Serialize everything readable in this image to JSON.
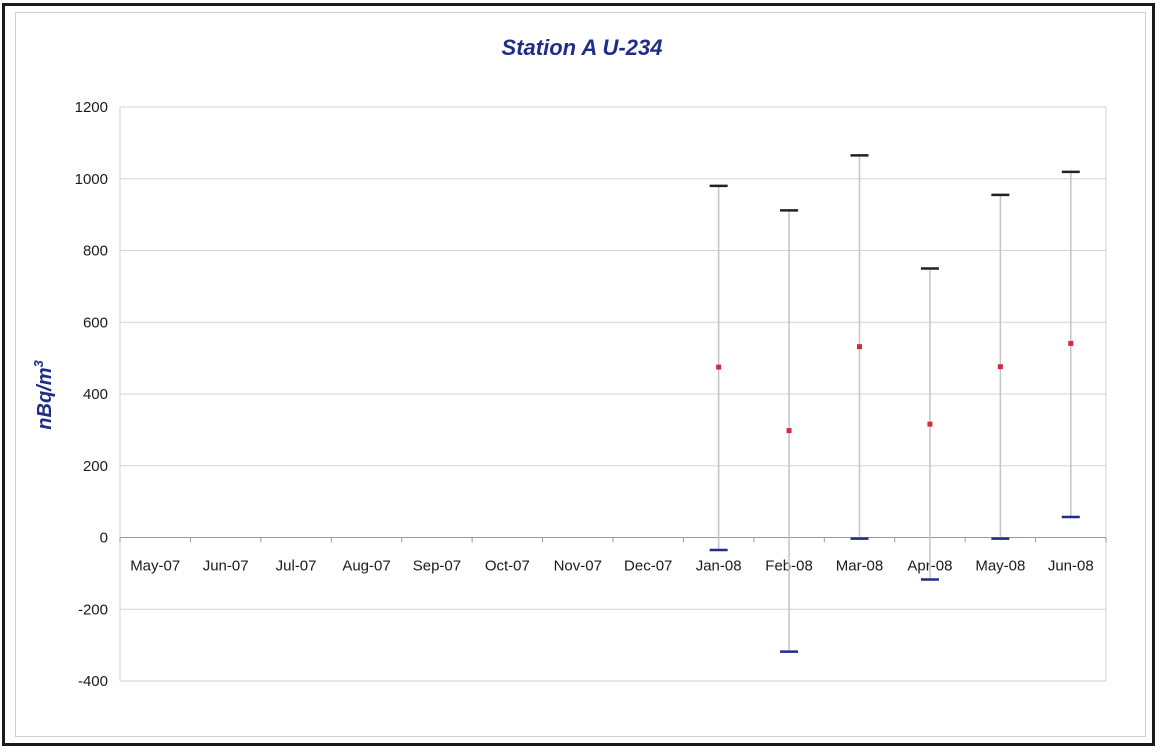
{
  "chart_data": {
    "type": "scatter",
    "title": "Station A U-234",
    "ylabel": "nBq/m",
    "ylabel_superscript": "3",
    "xlabel": "",
    "categories": [
      "May-07",
      "Jun-07",
      "Jul-07",
      "Aug-07",
      "Sep-07",
      "Oct-07",
      "Nov-07",
      "Dec-07",
      "Jan-08",
      "Feb-08",
      "Mar-08",
      "Apr-08",
      "May-08",
      "Jun-08"
    ],
    "ylim": [
      -400,
      1200
    ],
    "yticks": [
      -400,
      -200,
      0,
      200,
      400,
      600,
      800,
      1000,
      1200
    ],
    "grid": true,
    "legend": "none",
    "series": [
      {
        "type": "errorbar",
        "points": [
          {
            "category": "Jan-08",
            "value": 475,
            "low": -35,
            "high": 980
          },
          {
            "category": "Feb-08",
            "value": 298,
            "low": -318,
            "high": 912
          },
          {
            "category": "Mar-08",
            "value": 532,
            "low": -3,
            "high": 1065
          },
          {
            "category": "Apr-08",
            "value": 316,
            "low": -117,
            "high": 750
          },
          {
            "category": "May-08",
            "value": 476,
            "low": -3,
            "high": 955
          },
          {
            "category": "Jun-08",
            "value": 541,
            "low": 57,
            "high": 1019
          }
        ]
      }
    ],
    "colors": {
      "point": "#d8283e",
      "whisker": "#c4c4c4",
      "cap_high": "#222222",
      "cap_low": "#1f2d86",
      "grid": "#d3d3d3",
      "text_title": "#1f2d86"
    }
  }
}
